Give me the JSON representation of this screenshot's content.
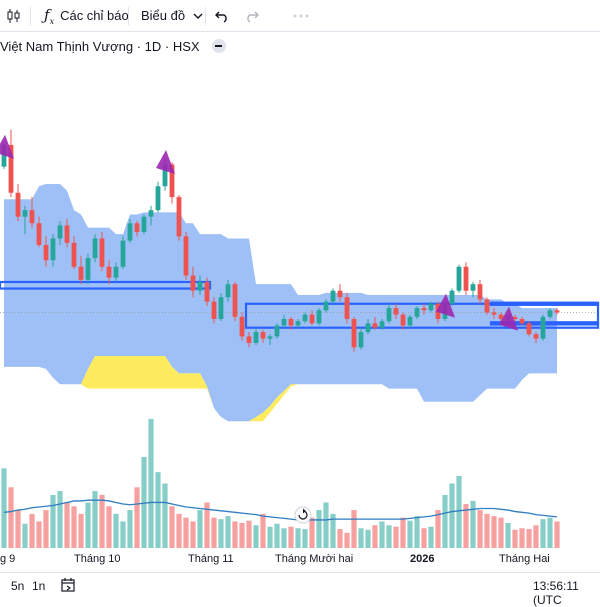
{
  "toolbar": {
    "indicators_label": "Các chỉ báo",
    "chart_type_label": "Biểu đồ",
    "icons": [
      "candles-icon",
      "fx-icon",
      "chevron-down-icon",
      "undo-icon",
      "redo-icon",
      "more-icon"
    ]
  },
  "header": {
    "symbol_title": "Việt Nam Thịnh Vượng · 1D · HSX"
  },
  "bottom_bar": {
    "range_5n": "5n",
    "range_1n": "1n",
    "time": "13:56:11 (UTC"
  },
  "colors": {
    "up": "#26a69a",
    "down": "#ef5350",
    "cloud": "#99bdf5",
    "lagging": "#ffeb5e",
    "band": "#2962ff",
    "volume_ma": "#2f7dc2",
    "marker": "#9c27b0"
  },
  "chart_data": {
    "type": "candlestick",
    "title": "Việt Nam Thịnh Vượng · 1D · HSX",
    "x_tick_labels": [
      "g 9",
      "Tháng 10",
      "Tháng 11",
      "Tháng Mười hai",
      "2026",
      "Tháng Hai"
    ],
    "candles": [
      [
        29.6,
        30.7,
        29.5,
        30.6
      ],
      [
        30.6,
        31.3,
        28.2,
        28.4
      ],
      [
        28.4,
        28.8,
        27.1,
        27.3
      ],
      [
        27.3,
        27.8,
        26.5,
        27.6
      ],
      [
        27.6,
        28.2,
        26.8,
        27
      ],
      [
        27,
        27.3,
        25.9,
        26
      ],
      [
        26,
        26.4,
        25,
        25.3
      ],
      [
        25.3,
        26.5,
        25,
        26.3
      ],
      [
        26.3,
        27.1,
        26,
        26.9
      ],
      [
        26.9,
        27.2,
        25.9,
        26.1
      ],
      [
        26.1,
        26.4,
        24.9,
        25
      ],
      [
        25,
        25.5,
        24.2,
        24.4
      ],
      [
        24.4,
        25.6,
        24.2,
        25.4
      ],
      [
        25.4,
        26.5,
        25.2,
        26.3
      ],
      [
        26.3,
        26.6,
        24.8,
        25
      ],
      [
        25,
        25.3,
        24.2,
        24.5
      ],
      [
        24.5,
        25.2,
        24.3,
        25
      ],
      [
        25,
        26.4,
        24.9,
        26.2
      ],
      [
        26.2,
        27.2,
        26.1,
        27
      ],
      [
        27,
        27.1,
        26.4,
        26.6
      ],
      [
        26.6,
        27.4,
        26.5,
        27.3
      ],
      [
        27.3,
        27.8,
        26.9,
        27.6
      ],
      [
        27.6,
        28.9,
        27.5,
        28.7
      ],
      [
        28.7,
        30,
        28.5,
        29.7
      ],
      [
        29.7,
        29.8,
        27.9,
        28.2
      ],
      [
        28.2,
        28.3,
        26.2,
        26.4
      ],
      [
        26.4,
        26.6,
        24.4,
        24.6
      ],
      [
        24.6,
        25,
        23.6,
        23.9
      ],
      [
        23.9,
        24.6,
        23.7,
        24.3
      ],
      [
        24.3,
        24.5,
        23.2,
        23.4
      ],
      [
        23.4,
        23.6,
        22.4,
        22.6
      ],
      [
        22.6,
        23.8,
        22.5,
        23.6
      ],
      [
        23.6,
        24.4,
        23.4,
        24.2
      ],
      [
        24.2,
        24.3,
        22.5,
        22.7
      ],
      [
        22.7,
        22.9,
        21.6,
        21.8
      ],
      [
        21.8,
        22,
        21.3,
        21.5
      ],
      [
        21.5,
        22.2,
        21.4,
        22
      ],
      [
        22,
        22.1,
        21.5,
        21.7
      ],
      [
        21.7,
        21.9,
        21.4,
        21.8
      ],
      [
        21.8,
        22.4,
        21.7,
        22.3
      ],
      [
        22.3,
        22.8,
        22.2,
        22.6
      ],
      [
        22.6,
        22.7,
        22.1,
        22.3
      ],
      [
        22.3,
        22.6,
        22.2,
        22.5
      ],
      [
        22.5,
        22.9,
        22.4,
        22.8
      ],
      [
        22.8,
        23,
        22.3,
        22.4
      ],
      [
        22.4,
        23.1,
        22.3,
        23
      ],
      [
        23,
        23.5,
        22.9,
        23.4
      ],
      [
        23.4,
        24,
        23.3,
        23.9
      ],
      [
        23.9,
        24.2,
        23.4,
        23.6
      ],
      [
        23.6,
        23.8,
        22.4,
        22.6
      ],
      [
        22.6,
        22.7,
        21.1,
        21.3
      ],
      [
        21.3,
        22.2,
        21.2,
        22
      ],
      [
        22,
        22.6,
        21.9,
        22.4
      ],
      [
        22.4,
        22.7,
        22.1,
        22.2
      ],
      [
        22.2,
        22.6,
        22.1,
        22.5
      ],
      [
        22.5,
        23.3,
        22.4,
        23.1
      ],
      [
        23.1,
        23.3,
        22.6,
        22.8
      ],
      [
        22.8,
        22.9,
        22.1,
        22.3
      ],
      [
        22.3,
        22.8,
        22.2,
        22.7
      ],
      [
        22.7,
        23.2,
        22.6,
        23.1
      ],
      [
        23.1,
        23.3,
        22.8,
        23
      ],
      [
        23,
        23.4,
        22.9,
        23.3
      ],
      [
        23.3,
        23.4,
        22.4,
        22.6
      ],
      [
        22.6,
        23.4,
        22.5,
        23.3
      ],
      [
        23.3,
        24,
        23.2,
        23.9
      ],
      [
        23.9,
        25.1,
        23.8,
        25
      ],
      [
        25,
        25.2,
        23.7,
        23.9
      ],
      [
        23.9,
        24.3,
        23.6,
        24.2
      ],
      [
        24.2,
        24.4,
        23.3,
        23.5
      ],
      [
        23.5,
        23.6,
        22.8,
        22.9
      ],
      [
        22.9,
        23.1,
        22.6,
        22.8
      ],
      [
        22.8,
        22.9,
        22.5,
        22.6
      ],
      [
        22.6,
        22.8,
        22.4,
        22.7
      ],
      [
        22.7,
        22.8,
        22.5,
        22.6
      ],
      [
        22.6,
        22.7,
        22.3,
        22.4
      ],
      [
        22.4,
        22.5,
        21.8,
        21.9
      ],
      [
        21.9,
        22,
        21.5,
        21.7
      ],
      [
        21.7,
        22.8,
        21.6,
        22.7
      ],
      [
        22.7,
        23.1,
        22.6,
        23
      ],
      [
        23,
        23.1,
        22.8,
        22.9
      ]
    ],
    "ichimoku_cloud_upper": [
      28.1,
      28.1,
      28.1,
      28.1,
      28.1,
      28.7,
      28.8,
      28.8,
      28.8,
      28.5,
      27.6,
      27.4,
      26.8,
      26.8,
      26.8,
      26.8,
      26.5,
      26.5,
      27.4,
      27.4,
      27.5,
      27.5,
      27.5,
      27.5,
      27.5,
      27.5,
      27,
      27,
      26.5,
      26.5,
      26.5,
      26.5,
      26.3,
      26.3,
      26.3,
      26.3,
      24.2,
      24.2,
      24.2,
      24.2,
      24.2,
      24.2,
      23.7,
      23.7,
      23.7,
      23.7,
      23.8,
      23.8,
      23.8,
      23.8,
      23.8,
      23.8,
      23.7,
      23.7,
      23.7,
      23.7,
      23.7,
      23.7,
      23.7,
      23.7,
      23.7,
      23.7,
      23.7,
      23.7,
      23.7,
      23.7,
      23.7,
      23.7,
      23.7,
      23.5,
      23.5,
      23.5,
      23.3,
      23.3,
      23.1,
      23.1,
      23.1,
      23.1,
      23.1,
      23.1
    ],
    "ichimoku_cloud_lower": [
      20.4,
      20.4,
      20.4,
      20.4,
      20.4,
      20.4,
      20.3,
      19.9,
      19.6,
      19.6,
      19.6,
      19.6,
      20.3,
      20.9,
      20.9,
      20.9,
      20.9,
      20.9,
      20.9,
      20.9,
      20.9,
      20.9,
      20.9,
      20.9,
      20.4,
      20.1,
      20.1,
      20.1,
      20.1,
      19.5,
      18.5,
      18.1,
      17.9,
      17.9,
      17.9,
      17.9,
      18.1,
      18.3,
      18.6,
      19,
      19.3,
      19.6,
      19.6,
      19.6,
      19.6,
      19.6,
      19.6,
      19.6,
      19.6,
      19.6,
      19.6,
      19.6,
      19.6,
      19.6,
      19.6,
      19.4,
      19.4,
      19.4,
      19.4,
      19.4,
      18.8,
      18.8,
      18.8,
      18.8,
      18.8,
      18.8,
      18.8,
      18.8,
      19.1,
      19.4,
      19.4,
      19.4,
      19.4,
      19.4,
      19.8,
      20.1,
      20.1,
      20.1,
      20.1,
      20.1
    ],
    "ichimoku_cloud_floor": [
      20.4,
      20.4,
      20.4,
      20.4,
      20.4,
      20.4,
      20.3,
      19.9,
      19.6,
      19.6,
      19.6,
      19.6,
      19.4,
      19.4,
      19.4,
      19.4,
      19.4,
      19.4,
      19.4,
      19.4,
      19.4,
      19.4,
      19.4,
      19.4,
      19.4,
      19.4,
      19.4,
      19.4,
      19.4,
      19.4,
      18.5,
      18.1,
      17.9,
      17.9,
      17.9,
      17.9,
      17.9,
      17.9,
      18.3,
      18.7,
      19.1,
      19.5,
      19.6,
      19.6,
      19.6,
      19.6,
      19.6,
      19.6,
      19.6,
      19.6,
      19.6,
      19.6,
      19.6,
      19.6,
      19.6,
      19.4,
      19.4,
      19.4,
      19.4,
      19.4,
      18.8,
      18.8,
      18.8,
      18.8,
      18.8,
      18.8,
      18.8,
      18.8,
      19.1,
      19.4,
      19.4,
      19.4,
      19.4,
      19.4,
      19.8,
      20.1,
      20.1,
      20.1,
      20.1,
      20.1
    ],
    "volume": [
      10.5,
      8,
      5,
      3.2,
      4.5,
      3.5,
      5,
      7,
      7.5,
      6,
      5.5,
      4.5,
      6,
      7.5,
      7,
      5.5,
      4.5,
      3.5,
      5,
      8,
      12,
      17,
      10,
      8.5,
      5.5,
      4.5,
      4,
      3.5,
      5,
      6,
      4,
      3.8,
      4.2,
      3.5,
      3.3,
      3.6,
      3,
      4.5,
      2.8,
      3.2,
      2.6,
      2.8,
      2.6,
      2.5,
      4,
      5,
      6,
      4.5,
      2.5,
      2,
      5,
      2.6,
      2.4,
      3,
      3.5,
      3,
      2.8,
      4,
      3.6,
      4.2,
      2.6,
      2.8,
      5,
      7,
      8.5,
      9.5,
      5.8,
      6.2,
      5,
      4.5,
      4.2,
      4,
      3.3,
      2.4,
      2.6,
      2.5,
      3,
      3.8,
      4,
      3.5
    ],
    "volume_ma": [
      4.7,
      4.8,
      5,
      5.1,
      5.3,
      5.4,
      5.5,
      5.6,
      5.8,
      6,
      6.2,
      6.2,
      6.3,
      6.3,
      6.3,
      6.2,
      6,
      5.8,
      5.7,
      5.8,
      5.9,
      6,
      6,
      6,
      5.8,
      5.6,
      5.4,
      5.3,
      5.2,
      5.1,
      5,
      4.9,
      4.8,
      4.7,
      4.6,
      4.5,
      4.4,
      4.2,
      4.1,
      4,
      3.9,
      3.8,
      3.7,
      3.7,
      3.7,
      3.7,
      3.7,
      3.8,
      3.8,
      3.8,
      3.8,
      3.8,
      3.8,
      3.8,
      3.8,
      3.8,
      3.8,
      3.8,
      3.9,
      4,
      4.1,
      4.2,
      4.4,
      4.6,
      4.8,
      4.9,
      5,
      5.1,
      5.2,
      5.2,
      5.2,
      5.1,
      5,
      4.8,
      4.7,
      4.6,
      4.4,
      4.3,
      4.2,
      4.1
    ],
    "bands": [
      {
        "from": 0,
        "to": 29,
        "top": 24.3,
        "bottom": 24.0
      },
      {
        "from": 35,
        "to": 80,
        "top": 23.3,
        "bottom": 22.2
      },
      {
        "from": 70,
        "to": 80,
        "top": 23.35,
        "bottom": 23.25
      },
      {
        "from": 70,
        "to": 80,
        "top": 22.45,
        "bottom": 22.35
      }
    ],
    "ylim_price": [
      17.5,
      34.5
    ],
    "ylim_volume": [
      0,
      19.5
    ],
    "signal_markers": [
      0,
      23,
      63,
      72
    ]
  }
}
